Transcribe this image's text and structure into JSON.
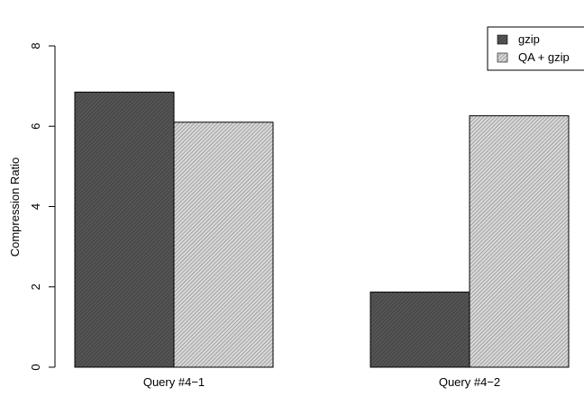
{
  "chart_data": {
    "type": "bar",
    "ylabel": "Compression Ratio",
    "ylim": [
      0,
      8
    ],
    "yticks": [
      "0",
      "2",
      "4",
      "6",
      "8"
    ],
    "categories": [
      "Query #4−1",
      "Query #4−2"
    ],
    "series": [
      {
        "name": "gzip",
        "values": [
          6.85,
          1.87
        ],
        "pattern": "dense-diagonal-hatch",
        "color": "#4d4d4d"
      },
      {
        "name": "QA + gzip",
        "values": [
          6.1,
          6.26
        ],
        "pattern": "fine-diagonal-hatch",
        "color": "#bdbdbd"
      }
    ],
    "legend": {
      "position": "top-right",
      "items": [
        "gzip",
        "QA + gzip"
      ]
    },
    "grid": false
  }
}
